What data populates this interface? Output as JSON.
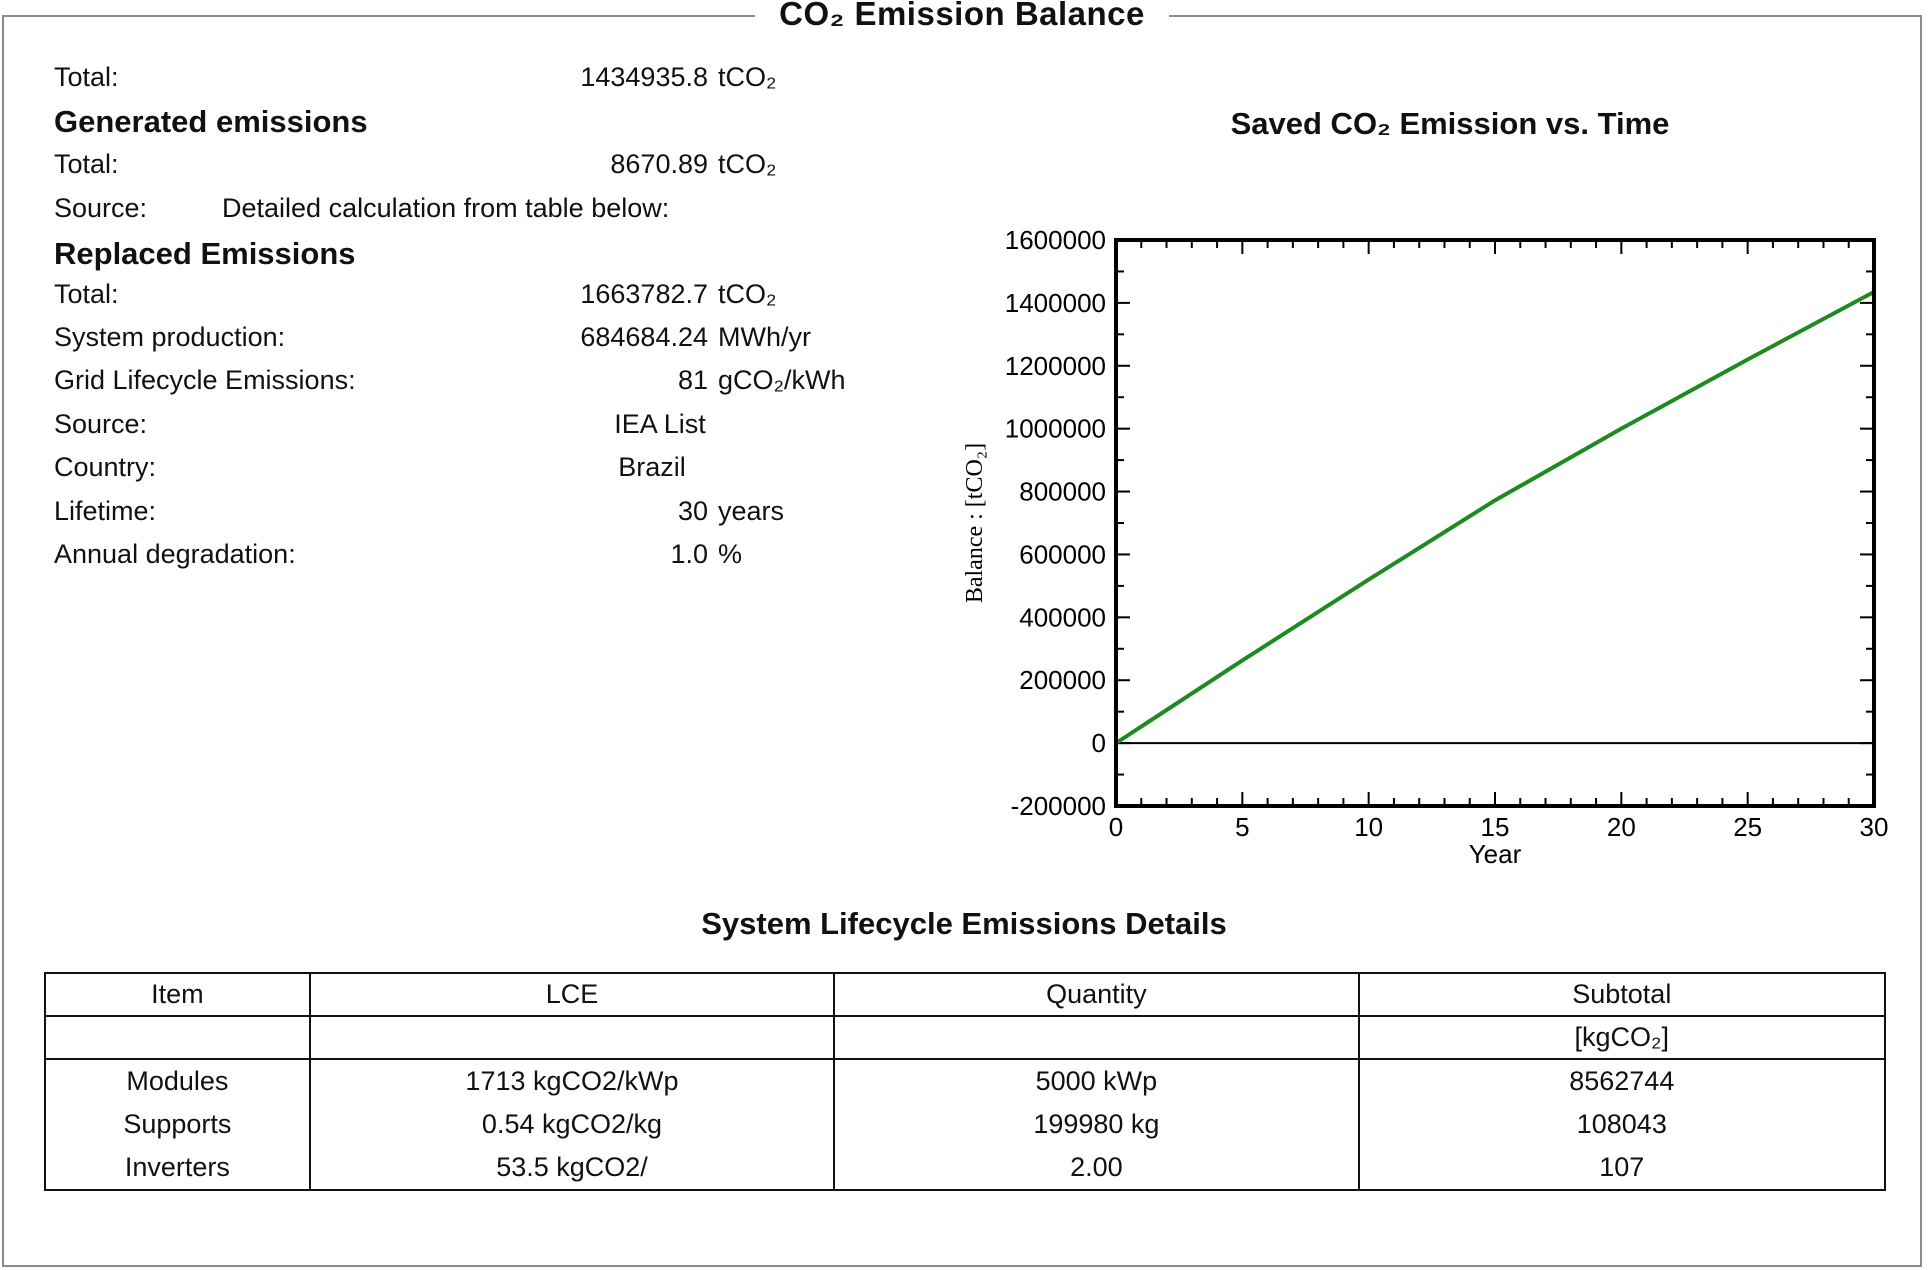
{
  "title": "CO₂ Emission Balance",
  "summary": {
    "label": "Total:",
    "value": "1434935.8",
    "unit": "tCO₂"
  },
  "generated": {
    "heading": "Generated emissions",
    "total_label": "Total:",
    "total_value": "8670.89",
    "total_unit": "tCO₂",
    "source_label": "Source:",
    "source_value": "Detailed calculation from table below:"
  },
  "replaced": {
    "heading": "Replaced Emissions",
    "rows": [
      {
        "label": "Total:",
        "value": "1663782.7",
        "unit": "tCO₂"
      },
      {
        "label": "System production:",
        "value": "684684.24",
        "unit": "MWh/yr"
      },
      {
        "label": "Grid Lifecycle Emissions:",
        "value": "81",
        "unit": "gCO₂/kWh"
      },
      {
        "label": "Source:",
        "value": "IEA List",
        "unit": ""
      },
      {
        "label": "Country:",
        "value": "Brazil",
        "unit": ""
      },
      {
        "label": "Lifetime:",
        "value": "30",
        "unit": "years"
      },
      {
        "label": "Annual degradation:",
        "value": "1.0",
        "unit": "%"
      }
    ]
  },
  "chart_data": {
    "type": "line",
    "title": "Saved CO₂ Emission vs. Time",
    "xlabel": "Year",
    "ylabel": "Balance : [tCO₂]",
    "xlim": [
      0,
      30
    ],
    "ylim": [
      -200000,
      1600000
    ],
    "x_ticks": [
      "0",
      "5",
      "10",
      "15",
      "20",
      "25",
      "30"
    ],
    "y_ticks": [
      "1600000",
      "1400000",
      "1200000",
      "1000000",
      "800000",
      "600000",
      "400000",
      "200000",
      "0",
      "-200000"
    ],
    "series": [
      {
        "color": "#1f8a1f",
        "x": [
          0,
          5,
          10,
          15,
          20,
          25,
          30
        ],
        "y": [
          0,
          263000,
          520000,
          772000,
          1000000,
          1220000,
          1434936
        ]
      }
    ],
    "zero_line": true,
    "grid": false
  },
  "table": {
    "title": "System Lifecycle Emissions Details",
    "headers": [
      "Item",
      "LCE",
      "Quantity",
      "Subtotal"
    ],
    "units": [
      "",
      "",
      "",
      "[kgCO₂]"
    ],
    "rows": [
      [
        "Modules",
        "1713 kgCO2/kWp",
        "5000 kWp",
        "8562744"
      ],
      [
        "Supports",
        "0.54 kgCO2/kg",
        "199980 kg",
        "108043"
      ],
      [
        "Inverters",
        "53.5 kgCO2/",
        "2.00",
        "107"
      ]
    ]
  }
}
